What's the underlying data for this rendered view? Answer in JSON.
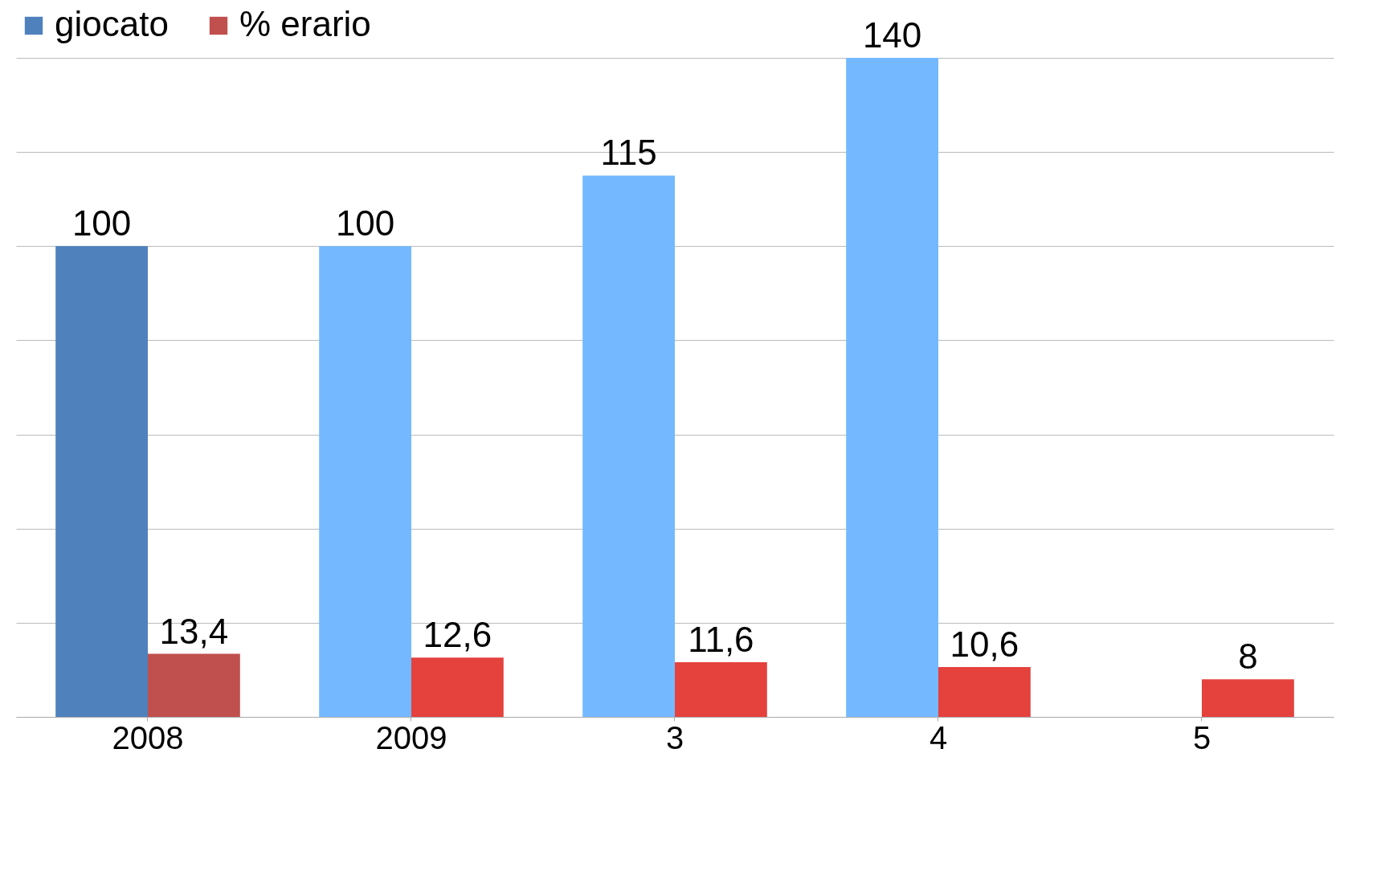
{
  "chart_data": {
    "type": "bar",
    "categories": [
      "2008",
      "2009",
      "3",
      "4",
      "5"
    ],
    "series": [
      {
        "name": "giocato",
        "color": "#4f81bd",
        "colors": [
          "#4f81bd",
          "#74b9ff",
          "#74b9ff",
          "#74b9ff",
          "#74b9ff"
        ],
        "values": [
          100,
          100,
          115,
          140,
          null
        ],
        "value_labels": [
          "100",
          "100",
          "115",
          "140",
          null
        ]
      },
      {
        "name": "% erario",
        "color": "#c0504d",
        "colors": [
          "#c0504d",
          "#e5413d",
          "#e5413d",
          "#e5413d",
          "#e5413d"
        ],
        "values": [
          13.4,
          12.6,
          11.6,
          10.6,
          8
        ],
        "value_labels": [
          "13,4",
          "12,6",
          "11,6",
          "10,6",
          "8"
        ]
      }
    ],
    "ylim": [
      0,
      140
    ],
    "yticks": [
      {
        "value": 0,
        "label": null
      },
      {
        "value": 20,
        "label": null
      },
      {
        "value": 40,
        "label": null
      },
      {
        "value": 60,
        "label": null
      },
      {
        "value": 80,
        "label": null
      },
      {
        "value": 100,
        "label": null
      },
      {
        "value": 120,
        "label": null
      },
      {
        "value": 140,
        "label": null
      }
    ],
    "grid": "y",
    "legend": "top",
    "tick_labels": "x"
  }
}
